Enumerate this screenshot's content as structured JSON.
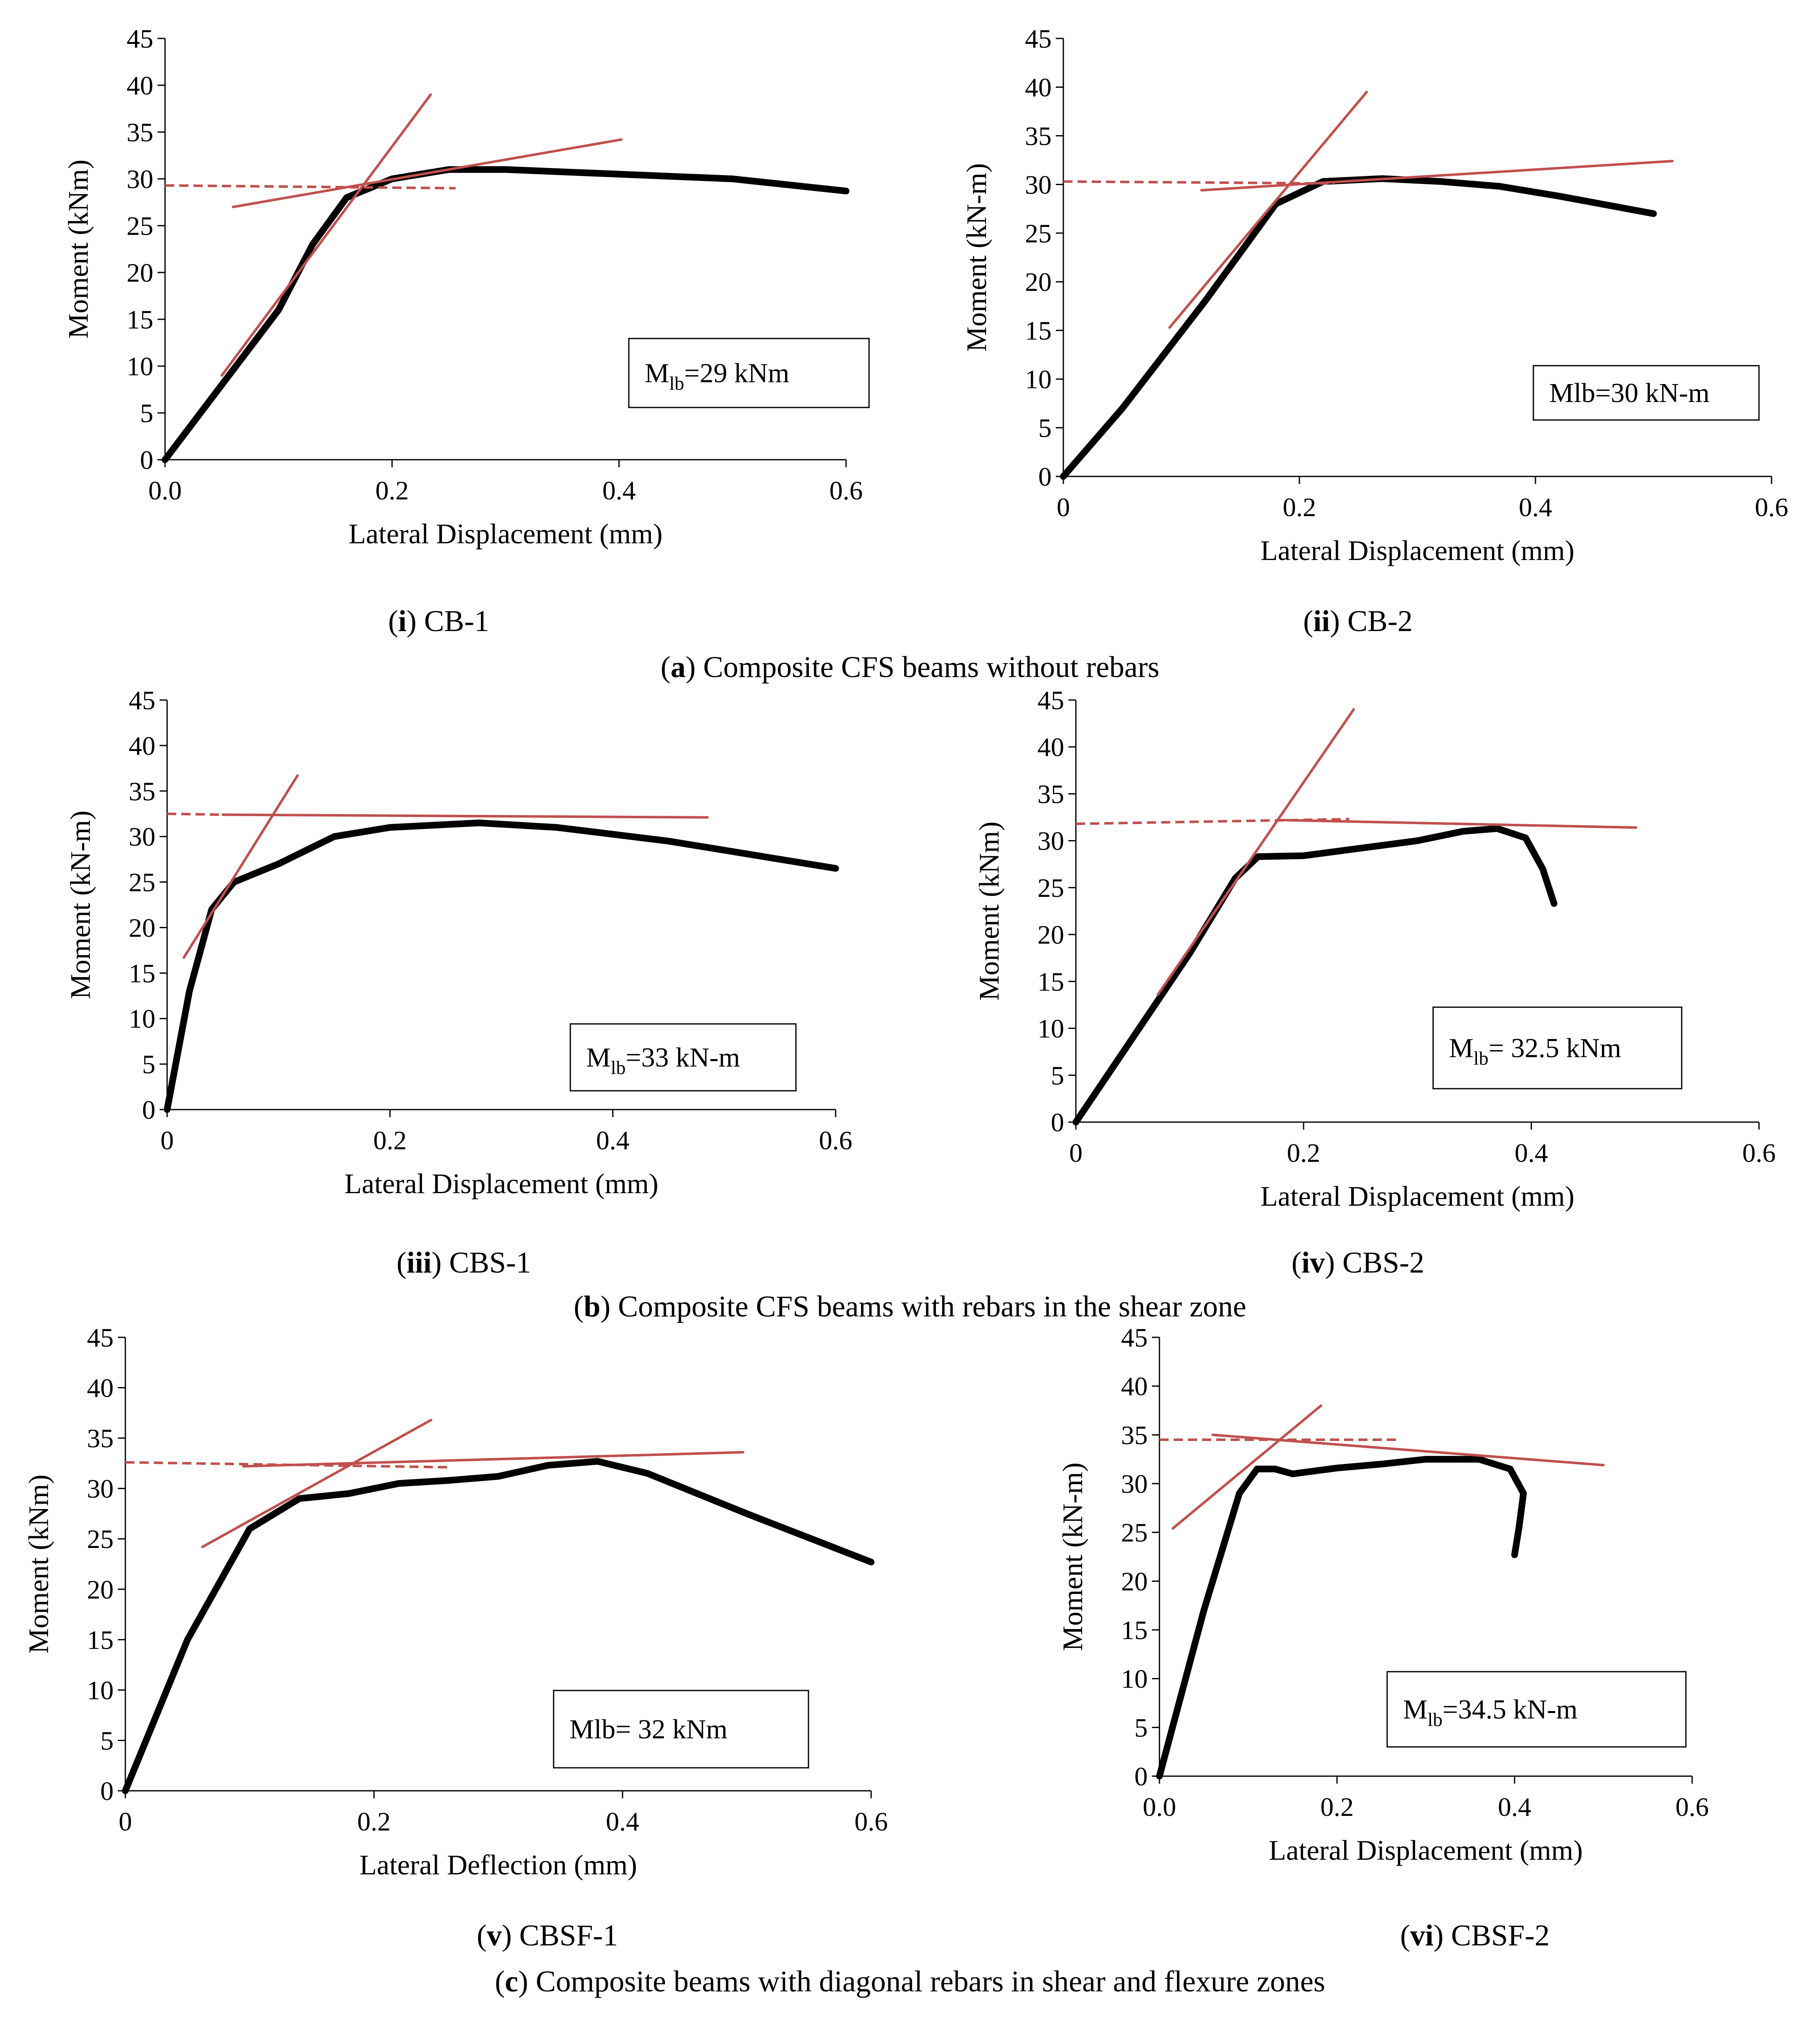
{
  "chart_data": [
    {
      "id": "i",
      "label": "CB-1",
      "type": "line",
      "xlabel": "Lateral Displacement (mm)",
      "ylabel": "Moment (kNm)",
      "xlim": [
        0,
        0.6
      ],
      "ylim": [
        0,
        45
      ],
      "xticks": [
        "0.0",
        "0.2",
        "0.4",
        "0.6"
      ],
      "yticks": [
        "0",
        "5",
        "10",
        "15",
        "20",
        "25",
        "30",
        "35",
        "40",
        "45"
      ],
      "annotation_pre": "M",
      "annotation_sub": "lb",
      "annotation_post": "=29 kNm",
      "series": [
        {
          "name": "experimental",
          "color": "#000000",
          "x": [
            0,
            0.05,
            0.1,
            0.13,
            0.16,
            0.2,
            0.25,
            0.3,
            0.4,
            0.5,
            0.6
          ],
          "y": [
            0,
            8,
            16,
            23,
            28,
            30,
            31,
            31,
            30.5,
            30,
            28.7
          ]
        },
        {
          "name": "initial-tangent",
          "color": "#C0504D",
          "x": [
            0.05,
            0.234
          ],
          "y": [
            9,
            39
          ]
        },
        {
          "name": "post-yield-tangent",
          "color": "#C0504D",
          "x": [
            0.06,
            0.402
          ],
          "y": [
            27,
            34.2
          ]
        },
        {
          "name": "yield-level",
          "color": "#C0504D",
          "dashed": true,
          "x": [
            0,
            0.256
          ],
          "y": [
            29.3,
            29
          ]
        }
      ]
    },
    {
      "id": "ii",
      "label": "CB-2",
      "type": "line",
      "xlabel": "Lateral Displacement (mm)",
      "ylabel": "Moment (kN-m)",
      "xlim": [
        0,
        0.6
      ],
      "ylim": [
        0,
        45
      ],
      "xticks": [
        "0",
        "0.2",
        "0.4",
        "0.6"
      ],
      "yticks": [
        "0",
        "5",
        "10",
        "15",
        "20",
        "25",
        "30",
        "35",
        "40",
        "45"
      ],
      "annotation_pre": "Mlb=30 kN-m",
      "annotation_sub": "",
      "annotation_post": "",
      "series": [
        {
          "name": "experimental",
          "color": "#000000",
          "x": [
            0,
            0.05,
            0.12,
            0.15,
            0.18,
            0.22,
            0.27,
            0.32,
            0.37,
            0.42,
            0.5
          ],
          "y": [
            0,
            7,
            18,
            23,
            28,
            30.3,
            30.6,
            30.3,
            29.8,
            28.8,
            27
          ]
        },
        {
          "name": "initial-tangent",
          "color": "#C0504D",
          "x": [
            0.09,
            0.257
          ],
          "y": [
            15.3,
            39.5
          ]
        },
        {
          "name": "post-yield-tangent",
          "color": "#C0504D",
          "x": [
            0.117,
            0.516
          ],
          "y": [
            29.4,
            32.4
          ]
        },
        {
          "name": "yield-level",
          "color": "#C0504D",
          "dashed": true,
          "x": [
            0,
            0.23
          ],
          "y": [
            30.3,
            30.1
          ]
        }
      ]
    },
    {
      "id": "iii",
      "label": "CBS-1",
      "type": "line",
      "xlabel": "Lateral Displacement (mm)",
      "ylabel": "Moment (kN-m)",
      "xlim": [
        0,
        0.6
      ],
      "ylim": [
        0,
        45
      ],
      "xticks": [
        "0",
        "0.2",
        "0.4",
        "0.6"
      ],
      "yticks": [
        "0",
        "5",
        "10",
        "15",
        "20",
        "25",
        "30",
        "35",
        "40",
        "45"
      ],
      "annotation_pre": "M",
      "annotation_sub": "lb",
      "annotation_post": "=33 kN-m",
      "series": [
        {
          "name": "experimental",
          "color": "#000000",
          "x": [
            0,
            0.02,
            0.04,
            0.06,
            0.1,
            0.15,
            0.2,
            0.28,
            0.35,
            0.45,
            0.6
          ],
          "y": [
            0,
            13,
            22,
            25,
            27,
            30,
            31,
            31.5,
            31,
            29.5,
            26.5
          ]
        },
        {
          "name": "initial-tangent",
          "color": "#C0504D",
          "x": [
            0.015,
            0.117
          ],
          "y": [
            16.7,
            36.7
          ]
        },
        {
          "name": "post-yield-tangent",
          "color": "#C0504D",
          "x": [
            0.05,
            0.485
          ],
          "y": [
            32.4,
            32.1
          ]
        },
        {
          "name": "yield-level",
          "color": "#C0504D",
          "dashed": true,
          "x": [
            0,
            0.05
          ],
          "y": [
            32.5,
            32.4
          ]
        }
      ]
    },
    {
      "id": "iv",
      "label": "CBS-2",
      "type": "line",
      "xlabel": "Lateral Displacement (mm)",
      "ylabel": "Moment (kNm)",
      "xlim": [
        0,
        0.6
      ],
      "ylim": [
        0,
        45
      ],
      "xticks": [
        "0",
        "0.2",
        "0.4",
        "0.6"
      ],
      "yticks": [
        "0",
        "5",
        "10",
        "15",
        "20",
        "25",
        "30",
        "35",
        "40",
        "45"
      ],
      "annotation_pre": "M",
      "annotation_sub": "lb",
      "annotation_post": "= 32.5 kNm",
      "series": [
        {
          "name": "experimental",
          "color": "#000000",
          "x": [
            0,
            0.05,
            0.1,
            0.14,
            0.16,
            0.2,
            0.25,
            0.3,
            0.34,
            0.37,
            0.395,
            0.41,
            0.42
          ],
          "y": [
            0,
            9,
            18,
            26,
            28.3,
            28.4,
            29.2,
            30,
            31,
            31.3,
            30.3,
            27,
            23.3
          ]
        },
        {
          "name": "initial-tangent",
          "color": "#C0504D",
          "x": [
            0.072,
            0.244
          ],
          "y": [
            13.6,
            44
          ]
        },
        {
          "name": "post-yield-tangent",
          "color": "#C0504D",
          "x": [
            0.18,
            0.492
          ],
          "y": [
            32.2,
            31.4
          ]
        },
        {
          "name": "yield-level",
          "color": "#C0504D",
          "dashed": true,
          "x": [
            0,
            0.24
          ],
          "y": [
            31.8,
            32.3
          ]
        }
      ]
    },
    {
      "id": "v",
      "label": "CBSF-1",
      "type": "line",
      "xlabel": "Lateral Deflection (mm)",
      "ylabel": "Moment (kNm)",
      "xlim": [
        0,
        0.6
      ],
      "ylim": [
        0,
        45
      ],
      "xticks": [
        "0",
        "0.2",
        "0.4",
        "0.6"
      ],
      "yticks": [
        "0",
        "5",
        "10",
        "15",
        "20",
        "25",
        "30",
        "35",
        "40",
        "45"
      ],
      "annotation_pre": "Mlb= 32 kNm",
      "annotation_sub": "",
      "annotation_post": "",
      "series": [
        {
          "name": "experimental",
          "color": "#000000",
          "x": [
            0,
            0.05,
            0.1,
            0.14,
            0.18,
            0.22,
            0.26,
            0.3,
            0.34,
            0.38,
            0.42,
            0.5,
            0.6
          ],
          "y": [
            0,
            15,
            26,
            29,
            29.5,
            30.5,
            30.8,
            31.2,
            32.3,
            32.7,
            31.5,
            27.5,
            22.7
          ]
        },
        {
          "name": "initial-tangent",
          "color": "#C0504D",
          "x": [
            0.062,
            0.246
          ],
          "y": [
            24.2,
            36.8
          ]
        },
        {
          "name": "post-yield-tangent",
          "color": "#C0504D",
          "x": [
            0.095,
            0.497
          ],
          "y": [
            32.2,
            33.6
          ]
        },
        {
          "name": "yield-level",
          "color": "#C0504D",
          "dashed": true,
          "x": [
            0,
            0.262
          ],
          "y": [
            32.6,
            32.1
          ]
        }
      ]
    },
    {
      "id": "vi",
      "label": "CBSF-2",
      "type": "line",
      "xlabel": "Lateral Displacement (mm)",
      "ylabel": "Moment (kN-m)",
      "xlim": [
        0,
        0.6
      ],
      "ylim": [
        0,
        45
      ],
      "xticks": [
        "0.0",
        "0.2",
        "0.4",
        "0.6"
      ],
      "yticks": [
        "0",
        "5",
        "10",
        "15",
        "20",
        "25",
        "30",
        "35",
        "40",
        "45"
      ],
      "annotation_pre": "M",
      "annotation_sub": "lb",
      "annotation_post": "=34.5 kN-m",
      "series": [
        {
          "name": "experimental",
          "color": "#000000",
          "x": [
            0,
            0.05,
            0.09,
            0.11,
            0.13,
            0.15,
            0.2,
            0.25,
            0.3,
            0.36,
            0.395,
            0.41,
            0.405,
            0.4
          ],
          "y": [
            0,
            17,
            29,
            31.5,
            31.5,
            31,
            31.6,
            32,
            32.5,
            32.5,
            31.5,
            29,
            25.5,
            22.7
          ]
        },
        {
          "name": "initial-tangent",
          "color": "#C0504D",
          "x": [
            0.015,
            0.182
          ],
          "y": [
            25.4,
            38
          ]
        },
        {
          "name": "post-yield-tangent",
          "color": "#C0504D",
          "x": [
            0.06,
            0.5
          ],
          "y": [
            35,
            31.9
          ]
        },
        {
          "name": "yield-level",
          "color": "#C0504D",
          "dashed": true,
          "x": [
            0,
            0.272
          ],
          "y": [
            34.5,
            34.5
          ]
        }
      ]
    }
  ],
  "subcaptions": {
    "i": {
      "id": "i",
      "label": "CB-1"
    },
    "ii": {
      "id": "ii",
      "label": "CB-2"
    },
    "iii": {
      "id": "iii",
      "label": "CBS-1"
    },
    "iv": {
      "id": "iv",
      "label": "CBS-2"
    },
    "v": {
      "id": "v",
      "label": "CBSF-1"
    },
    "vi": {
      "id": "vi",
      "label": "CBSF-2"
    }
  },
  "group_captions": {
    "a": {
      "id": "a",
      "text": "Composite CFS beams without rebars"
    },
    "b": {
      "id": "b",
      "text": "Composite CFS beams with rebars in the shear zone"
    },
    "c": {
      "id": "c",
      "text": "Composite beams with diagonal rebars in shear and flexure zones"
    }
  }
}
